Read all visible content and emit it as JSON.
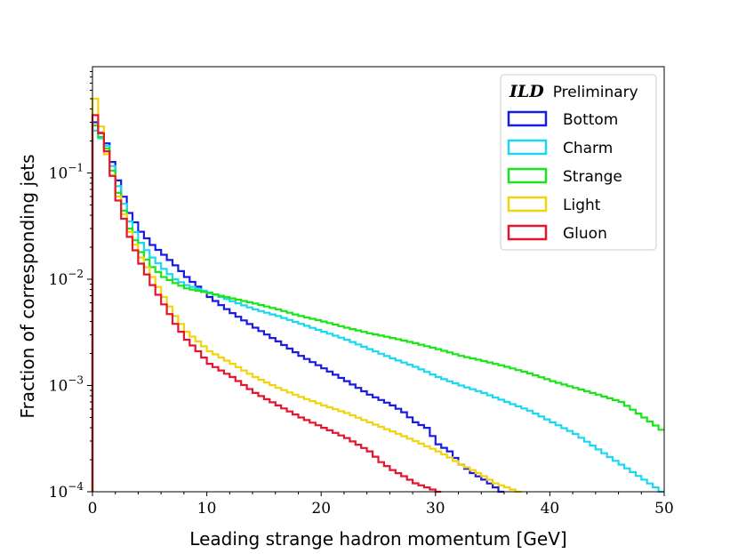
{
  "chart_data": {
    "type": "line",
    "title": "",
    "xlabel": "Leading strange hadron momentum [GeV]",
    "ylabel": "Fraction of corresponding jets",
    "xlim": [
      0,
      50
    ],
    "ylim": [
      0.0001,
      1
    ],
    "yscale": "log",
    "x_ticks": [
      "0",
      "10",
      "20",
      "30",
      "40",
      "50"
    ],
    "y_ticks": [
      {
        "base": "10",
        "exp": "−4",
        "value": 0.0001
      },
      {
        "base": "10",
        "exp": "−3",
        "value": 0.001
      },
      {
        "base": "10",
        "exp": "−2",
        "value": 0.01
      },
      {
        "base": "10",
        "exp": "−1",
        "value": 0.1
      }
    ],
    "grid": false,
    "legend": {
      "placement": "top-right",
      "title_ild": "ILD",
      "title_rest": "Preliminary"
    },
    "bin_width": 0.5,
    "series": [
      {
        "name": "Bottom",
        "color": "#1a1ae6",
        "points": [
          [
            0,
            0.3
          ],
          [
            1,
            0.19
          ],
          [
            2,
            0.085
          ],
          [
            3,
            0.042
          ],
          [
            4,
            0.028
          ],
          [
            5,
            0.021
          ],
          [
            6,
            0.017
          ],
          [
            7,
            0.0135
          ],
          [
            8,
            0.0105
          ],
          [
            9,
            0.0085
          ],
          [
            10,
            0.0068
          ],
          [
            12,
            0.0048
          ],
          [
            14,
            0.0035
          ],
          [
            16,
            0.0026
          ],
          [
            18,
            0.0019
          ],
          [
            20,
            0.00145
          ],
          [
            22,
            0.0011
          ],
          [
            24,
            0.00082
          ],
          [
            26,
            0.00065
          ],
          [
            27,
            0.00056
          ],
          [
            28,
            0.00045
          ],
          [
            29,
            0.0004
          ],
          [
            30,
            0.00028
          ],
          [
            31,
            0.00024
          ],
          [
            32,
            0.00018
          ],
          [
            33,
            0.00015
          ],
          [
            34,
            0.00013
          ],
          [
            35,
            0.00011
          ],
          [
            35.5,
            0.0001
          ]
        ]
      },
      {
        "name": "Charm",
        "color": "#1ad8f0",
        "points": [
          [
            0,
            0.25
          ],
          [
            1,
            0.18
          ],
          [
            2,
            0.075
          ],
          [
            3,
            0.035
          ],
          [
            4,
            0.022
          ],
          [
            5,
            0.016
          ],
          [
            6,
            0.0125
          ],
          [
            7,
            0.01
          ],
          [
            8,
            0.0088
          ],
          [
            10,
            0.0075
          ],
          [
            12,
            0.0062
          ],
          [
            14,
            0.0052
          ],
          [
            16,
            0.0045
          ],
          [
            18,
            0.0038
          ],
          [
            20,
            0.0032
          ],
          [
            22,
            0.0027
          ],
          [
            24,
            0.0022
          ],
          [
            26,
            0.0018
          ],
          [
            28,
            0.0015
          ],
          [
            30,
            0.0012
          ],
          [
            32,
            0.001
          ],
          [
            34,
            0.00085
          ],
          [
            36,
            0.0007
          ],
          [
            38,
            0.00058
          ],
          [
            40,
            0.00045
          ],
          [
            42,
            0.00035
          ],
          [
            44,
            0.00025
          ],
          [
            46,
            0.00018
          ],
          [
            48,
            0.00013
          ],
          [
            49,
            0.00011
          ],
          [
            49.5,
            0.0001
          ]
        ]
      },
      {
        "name": "Strange",
        "color": "#19e619",
        "points": [
          [
            0,
            0.28
          ],
          [
            1,
            0.17
          ],
          [
            2,
            0.065
          ],
          [
            3,
            0.03
          ],
          [
            4,
            0.018
          ],
          [
            5,
            0.013
          ],
          [
            6,
            0.0105
          ],
          [
            7,
            0.0092
          ],
          [
            8,
            0.0082
          ],
          [
            10,
            0.0074
          ],
          [
            12,
            0.0066
          ],
          [
            14,
            0.0059
          ],
          [
            16,
            0.0052
          ],
          [
            18,
            0.0045
          ],
          [
            20,
            0.004
          ],
          [
            22,
            0.0035
          ],
          [
            24,
            0.0031
          ],
          [
            26,
            0.0028
          ],
          [
            28,
            0.0025
          ],
          [
            30,
            0.0022
          ],
          [
            32,
            0.0019
          ],
          [
            34,
            0.0017
          ],
          [
            36,
            0.0015
          ],
          [
            38,
            0.0013
          ],
          [
            40,
            0.0011
          ],
          [
            42,
            0.00095
          ],
          [
            44,
            0.00082
          ],
          [
            46,
            0.0007
          ],
          [
            48,
            0.0005
          ],
          [
            49,
            0.00042
          ],
          [
            50,
            0.00035
          ]
        ]
      },
      {
        "name": "Light",
        "color": "#f2d40a",
        "points": [
          [
            0,
            0.5
          ],
          [
            1,
            0.15
          ],
          [
            2,
            0.06
          ],
          [
            3,
            0.028
          ],
          [
            4,
            0.016
          ],
          [
            5,
            0.0105
          ],
          [
            6,
            0.0068
          ],
          [
            7,
            0.0045
          ],
          [
            8,
            0.0032
          ],
          [
            9,
            0.0026
          ],
          [
            10,
            0.0021
          ],
          [
            12,
            0.0016
          ],
          [
            14,
            0.0012
          ],
          [
            16,
            0.00095
          ],
          [
            18,
            0.00078
          ],
          [
            20,
            0.00065
          ],
          [
            22,
            0.00055
          ],
          [
            24,
            0.00045
          ],
          [
            26,
            0.00037
          ],
          [
            28,
            0.0003
          ],
          [
            30,
            0.00024
          ],
          [
            31,
            0.00021
          ],
          [
            32,
            0.00018
          ],
          [
            33,
            0.00016
          ],
          [
            34,
            0.00014
          ],
          [
            35,
            0.00012
          ],
          [
            36,
            0.00011
          ],
          [
            37,
            0.0001
          ]
        ]
      },
      {
        "name": "Gluon",
        "color": "#e6142e",
        "points": [
          [
            0,
            0.35
          ],
          [
            1,
            0.16
          ],
          [
            2,
            0.055
          ],
          [
            3,
            0.025
          ],
          [
            4,
            0.014
          ],
          [
            5,
            0.0088
          ],
          [
            6,
            0.0058
          ],
          [
            7,
            0.0038
          ],
          [
            8,
            0.0027
          ],
          [
            9,
            0.0021
          ],
          [
            10,
            0.0016
          ],
          [
            12,
            0.0012
          ],
          [
            14,
            0.00085
          ],
          [
            16,
            0.00065
          ],
          [
            18,
            0.0005
          ],
          [
            20,
            0.0004
          ],
          [
            22,
            0.00032
          ],
          [
            24,
            0.00024
          ],
          [
            25,
            0.00019
          ],
          [
            26,
            0.00016
          ],
          [
            27,
            0.00014
          ],
          [
            28,
            0.00012
          ],
          [
            29,
            0.00011
          ],
          [
            30,
            0.0001
          ]
        ]
      }
    ]
  }
}
